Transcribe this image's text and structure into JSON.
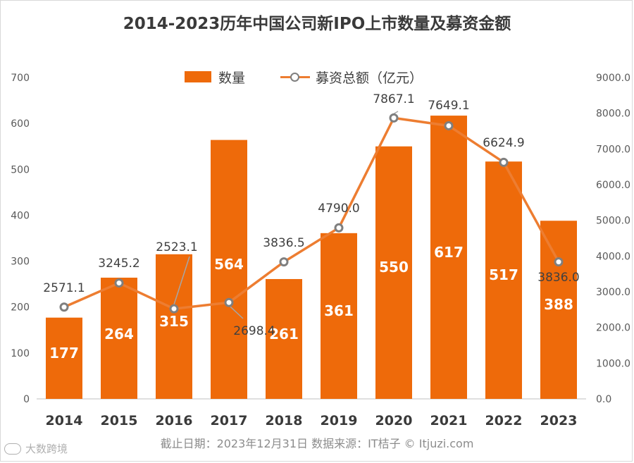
{
  "chart_data": {
    "type": "bar+line",
    "title": "2014-2023历年中国公司新IPO上市数量及募资金额",
    "categories": [
      "2014",
      "2015",
      "2016",
      "2017",
      "2018",
      "2019",
      "2020",
      "2021",
      "2022",
      "2023"
    ],
    "series": [
      {
        "name": "数量",
        "type": "bar",
        "axis": "left",
        "values": [
          177,
          264,
          315,
          564,
          261,
          361,
          550,
          617,
          517,
          388
        ],
        "labels": [
          "177",
          "264",
          "315",
          "564",
          "261",
          "361",
          "550",
          "617",
          "517",
          "388"
        ]
      },
      {
        "name": "募资总额（亿元）",
        "type": "line",
        "axis": "right",
        "values": [
          2571.1,
          3245.2,
          2523.1,
          2698.4,
          3836.5,
          4790.0,
          7867.1,
          7649.1,
          6624.9,
          3836.0
        ],
        "labels": [
          "2571.1",
          "3245.2",
          "2523.1",
          "2698.4",
          "3836.5",
          "4790.0",
          "7867.1",
          "7649.1",
          "6624.9",
          "3836.0"
        ]
      }
    ],
    "y_left": {
      "min": 0,
      "max": 700,
      "ticks": [
        "0",
        "100",
        "200",
        "300",
        "400",
        "500",
        "600",
        "700"
      ]
    },
    "y_right": {
      "min": 0,
      "max": 9000,
      "ticks": [
        "0.0",
        "1000.0",
        "2000.0",
        "3000.0",
        "4000.0",
        "5000.0",
        "6000.0",
        "7000.0",
        "8000.0",
        "9000.0"
      ]
    },
    "legend_position": "top-center",
    "grid": false
  },
  "colors": {
    "bar": "#EE6A0A",
    "line": "#ED7D31",
    "marker": "#7f7f7f",
    "axis_text": "#595959"
  },
  "source": "截止日期：2023年12月31日    数据来源：IT桔子 © Itjuzi.com",
  "watermark": "大数跨境"
}
